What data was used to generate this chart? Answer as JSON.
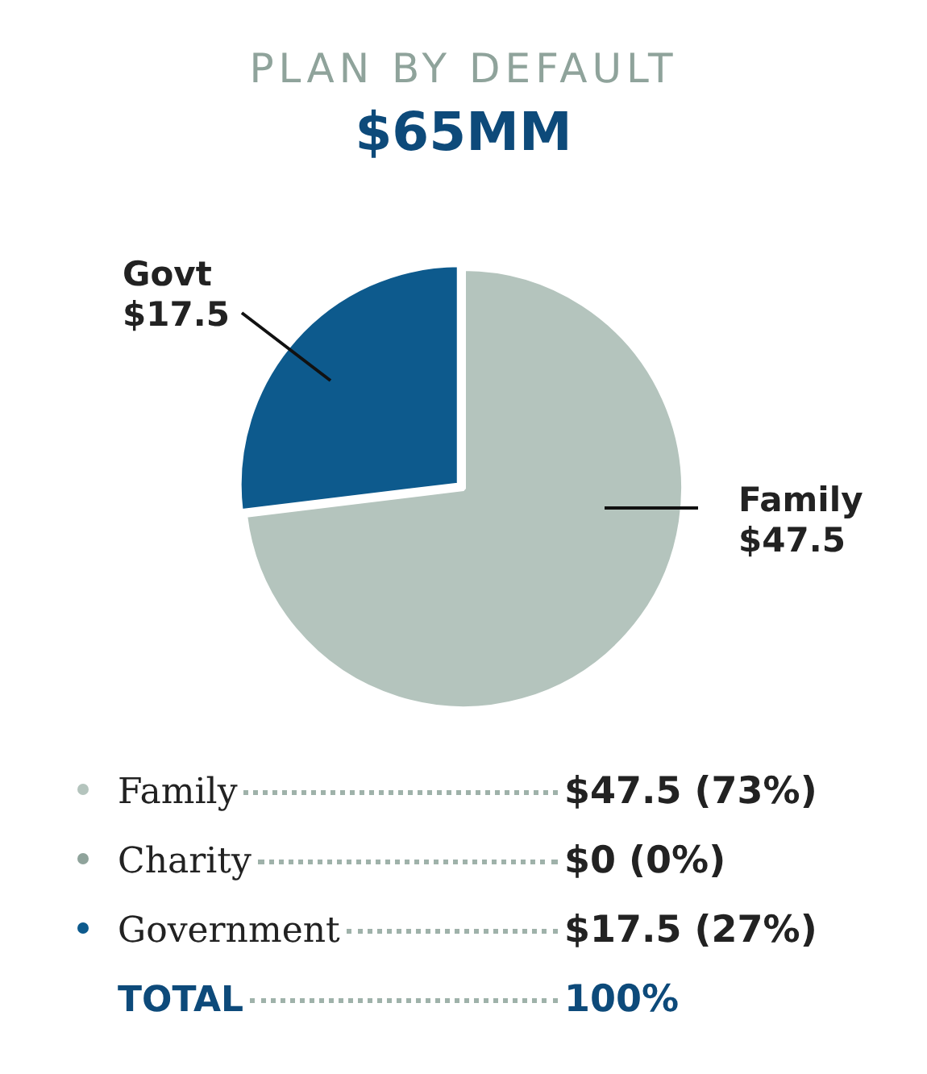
{
  "chart_data": {
    "type": "pie",
    "title": "PLAN BY DEFAULT",
    "subtitle": "$65MM",
    "categories": [
      "Family",
      "Charity",
      "Government"
    ],
    "values": [
      47.5,
      0,
      17.5
    ],
    "colors": [
      "#b4c4bd",
      "#8fa39b",
      "#0d5a8d"
    ],
    "legend": "bottom",
    "value_labels": [
      "$47.5 (73%)",
      "$0 (0%)",
      "$17.5 (27%)"
    ],
    "annotations": [
      "Govt\n$17.5",
      "Family\n$47.5",
      "TOTAL",
      "100%"
    ]
  }
}
